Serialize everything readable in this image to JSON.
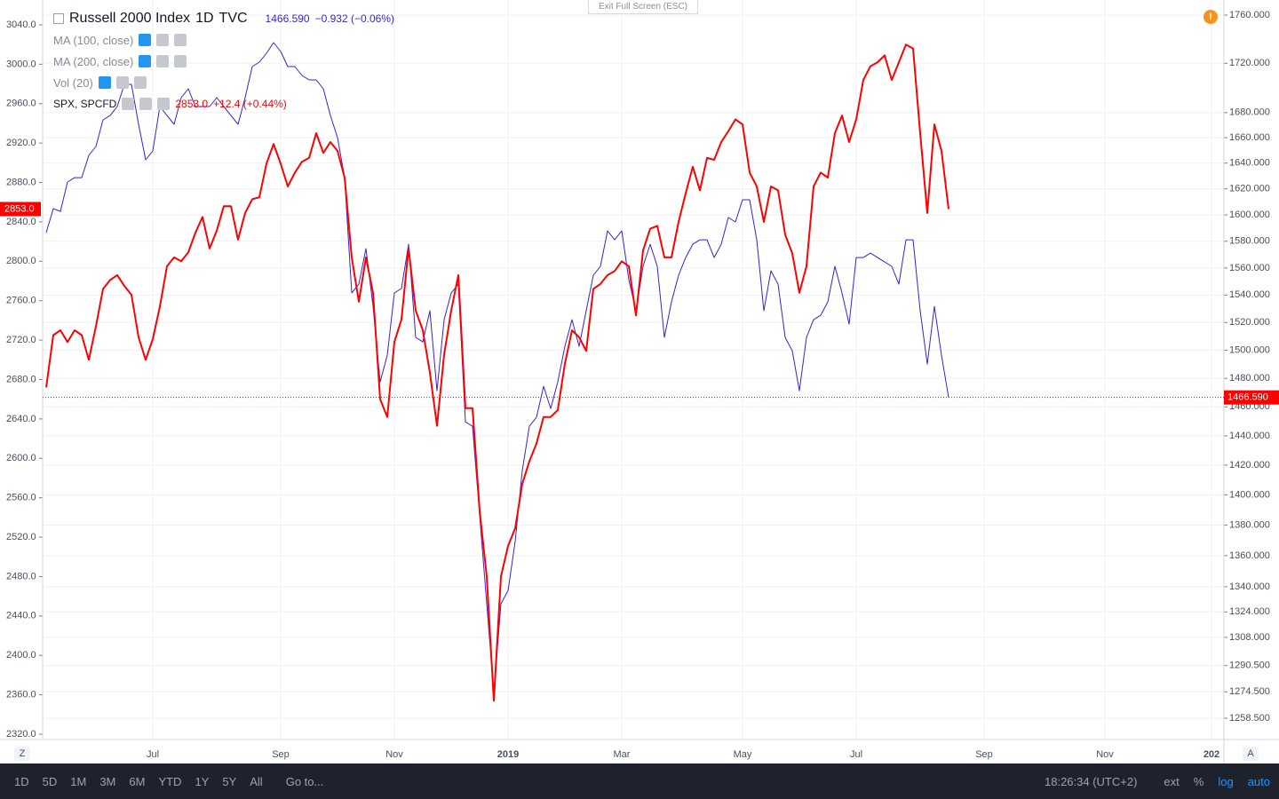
{
  "chart_data": {
    "type": "line",
    "interval": "1D",
    "exchange": "TVC",
    "indicators": [
      "MA (100, close)",
      "MA (200, close)",
      "Vol (20)"
    ],
    "categories": [
      null,
      null,
      null,
      null,
      null,
      null,
      null,
      null,
      null,
      null,
      null,
      null,
      null,
      null,
      null,
      "Jul",
      null,
      null,
      null,
      null,
      null,
      null,
      null,
      null,
      null,
      null,
      null,
      null,
      null,
      null,
      null,
      null,
      null,
      "Sep",
      null,
      null,
      null,
      null,
      null,
      null,
      null,
      null,
      null,
      null,
      null,
      null,
      null,
      null,
      null,
      "Nov",
      null,
      null,
      null,
      null,
      null,
      null,
      null,
      null,
      null,
      null,
      null,
      null,
      null,
      null,
      null,
      "2019",
      null,
      null,
      null,
      null,
      null,
      null,
      null,
      null,
      null,
      null,
      null,
      null,
      null,
      null,
      null,
      "Mar",
      null,
      null,
      null,
      null,
      null,
      null,
      null,
      null,
      null,
      null,
      null,
      null,
      null,
      null,
      null,
      null,
      "May",
      null,
      null,
      null,
      null,
      null,
      null,
      null,
      null,
      null,
      null,
      null,
      null,
      null,
      null,
      null,
      "Jul",
      null,
      null,
      null,
      null,
      null,
      null,
      null,
      null,
      null,
      null,
      null,
      null,
      null,
      null,
      null,
      null,
      null,
      "Sep",
      null,
      null,
      null,
      null,
      null,
      null,
      null,
      null,
      null,
      null,
      null,
      null,
      null,
      null,
      null,
      null,
      "Nov",
      null,
      null,
      null,
      null,
      null,
      null,
      null,
      null,
      null,
      null,
      null,
      null,
      null,
      null,
      "202",
      null
    ],
    "series": [
      {
        "name": "Russell 2000 Index",
        "color": "#3c1fd6",
        "axis": "y2",
        "last_label": "1466.590",
        "change_label": "−0.932 (−0.06%)",
        "values": [
          1586.5,
          1604.8,
          1602.7,
          1625.3,
          1628.7,
          1628.7,
          1646.1,
          1653.1,
          1674.2,
          1677.7,
          1684.9,
          1702.8,
          1702.8,
          1670.7,
          1642.6,
          1649.6,
          1684.9,
          1677.7,
          1670.7,
          1692.0,
          1699.2,
          1684.9,
          1684.9,
          1684.9,
          1692.0,
          1684.9,
          1677.7,
          1670.7,
          1692.0,
          1717.3,
          1720.9,
          1728.2,
          1737.0,
          1729.7,
          1717.3,
          1717.3,
          1710.0,
          1706.4,
          1706.4,
          1699.2,
          1677.7,
          1660.1,
          1628.7,
          1541.5,
          1548.0,
          1574.5,
          1531.7,
          1477.5,
          1496.4,
          1541.5,
          1544.8,
          1577.8,
          1509.2,
          1506.0,
          1528.5,
          1471.3,
          1522.0,
          1541.5,
          1548.0,
          1449.6,
          1446.6,
          1386.6,
          1329.1,
          1274.0,
          1329.1,
          1337.5,
          1369.1,
          1416.3,
          1446.6,
          1452.7,
          1474.4,
          1458.9,
          1477.5,
          1502.8,
          1522.0,
          1502.8,
          1528.5,
          1554.6,
          1561.2,
          1587.9,
          1581.1,
          1587.9,
          1551.3,
          1528.5,
          1561.2,
          1577.8,
          1561.2,
          1509.2,
          1535.0,
          1554.6,
          1567.8,
          1577.8,
          1581.1,
          1581.1,
          1567.8,
          1577.8,
          1598.0,
          1594.6,
          1611.6,
          1611.6,
          1581.1,
          1528.5,
          1557.9,
          1548.0,
          1509.2,
          1499.6,
          1471.3,
          1509.2,
          1522.0,
          1525.2,
          1535.0,
          1561.2,
          1541.5,
          1518.8,
          1567.8,
          1567.8,
          1571.1,
          1567.8,
          1564.5,
          1561.2,
          1548.0,
          1581.1,
          1581.1,
          1528.5,
          1490.1,
          1531.7,
          1496.4,
          1466.59,
          null,
          null,
          null,
          null,
          null,
          null,
          null,
          null,
          null,
          null,
          null,
          null,
          null,
          null,
          null,
          null,
          null,
          null,
          null,
          null,
          null,
          null,
          null,
          null,
          null,
          null,
          null,
          null,
          null,
          null,
          null,
          null,
          null,
          null,
          null,
          null,
          null,
          null
        ]
      },
      {
        "name": "SPX, SPCFD",
        "color": "#ff0000",
        "axis": "y",
        "last_label": "2853.0",
        "change_label": "+12.4 (+0.44%)",
        "values": [
          2672,
          2725,
          2730,
          2718,
          2730,
          2725,
          2700,
          2734,
          2772,
          2781,
          2786,
          2775,
          2766,
          2723,
          2700,
          2721,
          2754,
          2795,
          2804,
          2800,
          2809,
          2829,
          2845,
          2813,
          2831,
          2856,
          2856,
          2822,
          2849,
          2863,
          2865,
          2899,
          2919,
          2899,
          2876,
          2890,
          2901,
          2905,
          2930,
          2910,
          2921,
          2912,
          2885,
          2804,
          2759,
          2804,
          2768,
          2660,
          2642,
          2718,
          2741,
          2813,
          2750,
          2730,
          2687,
          2633,
          2705,
          2750,
          2786,
          2651,
          2651,
          2547,
          2480,
          2354,
          2480,
          2511,
          2529,
          2574,
          2597,
          2615,
          2642,
          2642,
          2649,
          2696,
          2730,
          2723,
          2709,
          2772,
          2777,
          2786,
          2790,
          2800,
          2795,
          2745,
          2811,
          2833,
          2836,
          2804,
          2804,
          2840,
          2869,
          2896,
          2872,
          2905,
          2903,
          2921,
          2932,
          2944,
          2939,
          2890,
          2876,
          2840,
          2876,
          2872,
          2827,
          2808,
          2768,
          2795,
          2876,
          2890,
          2885,
          2930,
          2948,
          2921,
          2944,
          2984,
          2998,
          3002,
          3009,
          2984,
          3002,
          3020,
          3016,
          2930,
          2849,
          2939,
          2912,
          2853.0,
          null,
          null,
          null,
          null,
          null,
          null,
          null,
          null,
          null,
          null,
          null,
          null,
          null,
          null,
          null,
          null,
          null,
          null,
          null,
          null,
          null,
          null,
          null,
          null,
          null,
          null,
          null,
          null,
          null,
          null,
          null,
          null,
          null,
          null,
          null,
          null,
          null,
          null
        ]
      }
    ],
    "ylim": [
      2314.6,
      3065.2
    ],
    "yticks": [
      {
        "value": 2320,
        "label": "2320.0"
      },
      {
        "value": 2360,
        "label": "2360.0"
      },
      {
        "value": 2400,
        "label": "2400.0"
      },
      {
        "value": 2440,
        "label": "2440.0"
      },
      {
        "value": 2480,
        "label": "2480.0"
      },
      {
        "value": 2520,
        "label": "2520.0"
      },
      {
        "value": 2560,
        "label": "2560.0"
      },
      {
        "value": 2600,
        "label": "2600.0"
      },
      {
        "value": 2640,
        "label": "2640.0"
      },
      {
        "value": 2680,
        "label": "2680.0"
      },
      {
        "value": 2720,
        "label": "2720.0"
      },
      {
        "value": 2760,
        "label": "2760.0"
      },
      {
        "value": 2800,
        "label": "2800.0"
      },
      {
        "value": 2840,
        "label": "2840.0"
      },
      {
        "value": 2880,
        "label": "2880.0"
      },
      {
        "value": 2920,
        "label": "2920.0"
      },
      {
        "value": 2960,
        "label": "2960.0"
      },
      {
        "value": 3000,
        "label": "3000.0"
      },
      {
        "value": 3040,
        "label": "3040.0"
      }
    ],
    "y2lim": [
      1245.8,
      1772.7
    ],
    "y2log": true,
    "y2ticks": [
      {
        "value": 1258.5,
        "label": "1258.500"
      },
      {
        "value": 1274.5,
        "label": "1274.500"
      },
      {
        "value": 1290.5,
        "label": "1290.500"
      },
      {
        "value": 1308,
        "label": "1308.000"
      },
      {
        "value": 1324,
        "label": "1324.000"
      },
      {
        "value": 1340,
        "label": "1340.000"
      },
      {
        "value": 1360,
        "label": "1360.000"
      },
      {
        "value": 1380,
        "label": "1380.000"
      },
      {
        "value": 1400,
        "label": "1400.000"
      },
      {
        "value": 1420,
        "label": "1420.000"
      },
      {
        "value": 1440,
        "label": "1440.000"
      },
      {
        "value": 1460,
        "label": "1460.000"
      },
      {
        "value": 1480,
        "label": "1480.000"
      },
      {
        "value": 1500,
        "label": "1500.000"
      },
      {
        "value": 1520,
        "label": "1520.000"
      },
      {
        "value": 1540,
        "label": "1540.000"
      },
      {
        "value": 1560,
        "label": "1560.000"
      },
      {
        "value": 1580,
        "label": "1580.000"
      },
      {
        "value": 1600,
        "label": "1600.000"
      },
      {
        "value": 1620,
        "label": "1620.000"
      },
      {
        "value": 1640,
        "label": "1640.000"
      },
      {
        "value": 1660,
        "label": "1660.000"
      },
      {
        "value": 1680,
        "label": "1680.000"
      },
      {
        "value": 1720,
        "label": "1720.000"
      },
      {
        "value": 1760,
        "label": "1760.000"
      }
    ],
    "grid": true
  },
  "ui": {
    "banner": "Exit Full Screen (ESC)",
    "scale_buttons": [
      "Z",
      "A"
    ],
    "ranges": [
      "1D",
      "5D",
      "1M",
      "3M",
      "6M",
      "YTD",
      "1Y",
      "5Y",
      "All"
    ],
    "goto": "Go to...",
    "clock": "18:26:34 (UTC+2)",
    "toggles": [
      "ext",
      "%",
      "log",
      "auto"
    ]
  }
}
